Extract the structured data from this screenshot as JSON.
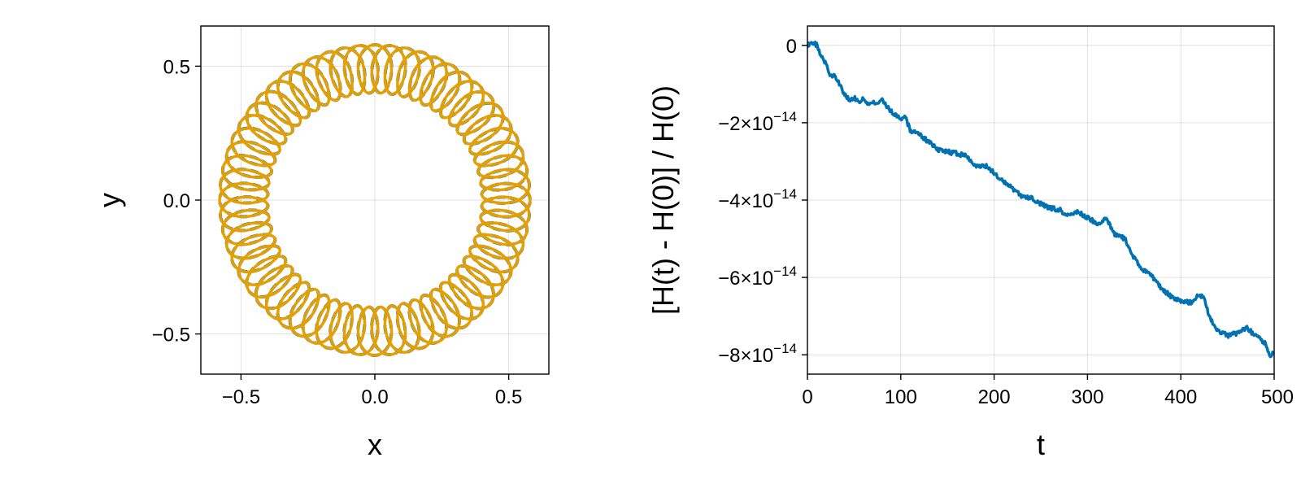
{
  "chart_data": [
    {
      "type": "line",
      "xlabel": "x",
      "ylabel": "y",
      "xlim": [
        -0.65,
        0.65
      ],
      "ylim": [
        -0.65,
        0.65
      ],
      "xticks": [
        -0.5,
        0.0,
        0.5
      ],
      "yticks": [
        -0.5,
        0.0,
        0.5
      ],
      "xtick_labels": [
        "−0.5",
        "0.0",
        "0.5"
      ],
      "ytick_labels": [
        "−0.5",
        "0.0",
        "0.5"
      ],
      "grid": true,
      "aspect": "equal",
      "series": [
        {
          "style": "dashed",
          "color": "#0072b2",
          "curve": "epicycle",
          "R": 0.49,
          "r": 0.09,
          "loops": 60
        },
        {
          "style": "solid",
          "color": "#e69f00",
          "curve": "epicycle",
          "R": 0.49,
          "r": 0.09,
          "loops": 60
        }
      ]
    },
    {
      "type": "line",
      "xlabel": "t",
      "ylabel": "[H(t) - H(0)] / H(0)",
      "xlim": [
        0,
        500
      ],
      "ylim": [
        -8.5e-14,
        5e-15
      ],
      "xticks": [
        0,
        100,
        200,
        300,
        400,
        500
      ],
      "xtick_labels": [
        "0",
        "100",
        "200",
        "300",
        "400",
        "500"
      ],
      "yticks": [
        0,
        -2e-14,
        -4e-14,
        -6e-14,
        -8e-14
      ],
      "ytick_labels": [
        {
          "base": "0",
          "exp": ""
        },
        {
          "base": "−2×10",
          "exp": "−14"
        },
        {
          "base": "−4×10",
          "exp": "−14"
        },
        {
          "base": "−6×10",
          "exp": "−14"
        },
        {
          "base": "−8×10",
          "exp": "−14"
        }
      ],
      "grid": true,
      "series": [
        {
          "color": "#0072b2",
          "x": [
            0,
            5,
            10,
            15,
            20,
            25,
            30,
            40,
            45,
            50,
            55,
            60,
            65,
            70,
            75,
            80,
            85,
            90,
            95,
            100,
            105,
            110,
            120,
            130,
            140,
            150,
            160,
            170,
            180,
            190,
            200,
            210,
            220,
            230,
            240,
            250,
            260,
            270,
            280,
            290,
            300,
            310,
            320,
            330,
            340,
            350,
            360,
            370,
            380,
            390,
            400,
            410,
            420,
            425,
            430,
            440,
            450,
            460,
            470,
            480,
            490,
            495,
            500
          ],
          "y": [
            0.0,
            1e-15,
            0.0,
            -3e-15,
            -5e-15,
            -8e-15,
            -8e-15,
            -1.3e-14,
            -1.4e-14,
            -1.35e-14,
            -1.45e-14,
            -1.4e-14,
            -1.55e-14,
            -1.45e-14,
            -1.5e-14,
            -1.4e-14,
            -1.6e-14,
            -1.7e-14,
            -1.8e-14,
            -1.9e-14,
            -1.85e-14,
            -2.2e-14,
            -2.3e-14,
            -2.5e-14,
            -2.7e-14,
            -2.75e-14,
            -2.8e-14,
            -2.85e-14,
            -3.1e-14,
            -3.1e-14,
            -3.3e-14,
            -3.5e-14,
            -3.7e-14,
            -3.9e-14,
            -3.95e-14,
            -4.1e-14,
            -4.2e-14,
            -4.25e-14,
            -4.4e-14,
            -4.3e-14,
            -4.45e-14,
            -4.6e-14,
            -4.5e-14,
            -4.9e-14,
            -5e-14,
            -5.5e-14,
            -5.8e-14,
            -6e-14,
            -6.3e-14,
            -6.5e-14,
            -6.6e-14,
            -6.65e-14,
            -6.45e-14,
            -6.5e-14,
            -7e-14,
            -7.4e-14,
            -7.5e-14,
            -7.45e-14,
            -7.3e-14,
            -7.5e-14,
            -7.7e-14,
            -8e-14,
            -7.95e-14
          ]
        }
      ]
    }
  ]
}
